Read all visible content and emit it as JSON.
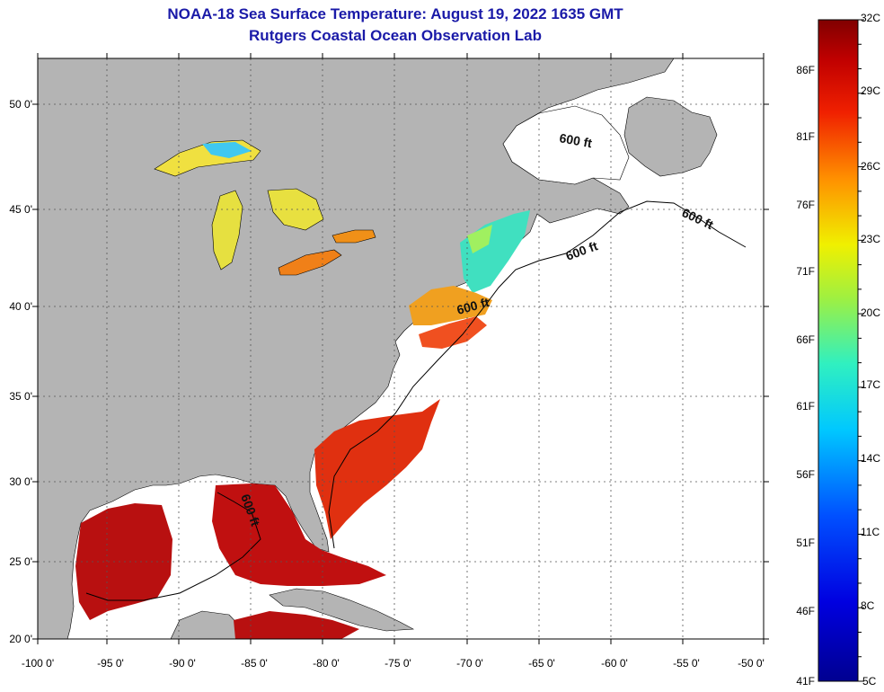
{
  "header": {
    "title": "NOAA-18 Sea Surface Temperature:  August 19, 2022 1635 GMT",
    "subtitle": "Rutgers Coastal Ocean Observation Lab"
  },
  "map": {
    "lon_range": [
      -100,
      -50
    ],
    "lat_range": [
      20,
      52
    ],
    "lon_ticks": [
      "-100 0'",
      "-95 0'",
      "-90 0'",
      "-85 0'",
      "-80 0'",
      "-75 0'",
      "-70 0'",
      "-65 0'",
      "-60 0'",
      "-55 0'",
      "-50 0'"
    ],
    "lat_ticks": [
      "20 0'",
      "25 0'",
      "30 0'",
      "35 0'",
      "40 0'",
      "45 0'",
      "50 0'"
    ],
    "land_color": "#b4b4b4",
    "no_data_color": "#ffffff",
    "isobath_labels": [
      "600 ft",
      "600 ft",
      "600 ft",
      "600 ft",
      "600 ft"
    ]
  },
  "colorbar": {
    "celsius_labels": [
      "32C",
      "29C",
      "26C",
      "23C",
      "20C",
      "17C",
      "14C",
      "11C",
      "8C",
      "5C"
    ],
    "fahrenheit_labels": [
      "86F",
      "81F",
      "76F",
      "71F",
      "66F",
      "61F",
      "56F",
      "51F",
      "46F",
      "41F"
    ],
    "min_c": 5,
    "max_c": 32
  }
}
